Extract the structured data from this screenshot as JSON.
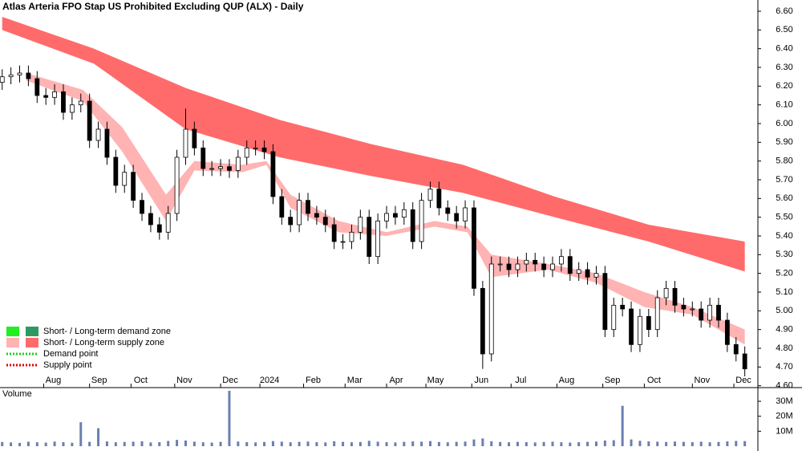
{
  "chart_data": {
    "type": "candlestick",
    "title": "Atlas Arteria FPO Stap US Prohibited Excluding QUP (ALX) - Daily",
    "x": [
      0,
      4,
      8,
      12,
      16,
      20,
      24,
      28,
      32,
      36,
      40,
      44,
      48,
      52,
      56,
      60,
      64,
      68,
      72,
      76,
      80,
      84,
      88,
      92,
      96,
      100,
      104,
      108,
      112,
      116,
      120,
      124,
      128,
      132,
      136,
      140,
      144,
      148,
      152,
      156,
      160,
      164,
      168,
      172,
      176,
      180,
      184,
      188,
      192,
      196,
      200,
      204,
      208,
      212,
      216,
      220,
      224,
      228,
      232,
      236,
      240,
      244,
      248,
      252,
      256,
      260,
      264,
      268,
      272,
      276,
      280,
      284,
      288,
      292,
      296,
      300,
      304,
      308,
      312,
      316,
      320,
      324,
      328,
      332,
      336,
      340
    ],
    "open": [
      6.22,
      6.25,
      6.26,
      6.27,
      6.24,
      6.15,
      6.14,
      6.17,
      6.06,
      6.1,
      6.12,
      5.91,
      5.97,
      5.82,
      5.67,
      5.74,
      5.59,
      5.52,
      5.46,
      5.42,
      5.52,
      5.82,
      5.97,
      5.87,
      5.76,
      5.76,
      5.77,
      5.75,
      5.82,
      5.87,
      5.87,
      5.85,
      5.61,
      5.5,
      5.46,
      5.59,
      5.52,
      5.5,
      5.46,
      5.37,
      5.37,
      5.42,
      5.5,
      5.29,
      5.48,
      5.52,
      5.5,
      5.54,
      5.37,
      5.59,
      5.65,
      5.55,
      5.52,
      5.48,
      5.55,
      5.12,
      4.77,
      5.25,
      5.25,
      5.22,
      5.25,
      5.27,
      5.25,
      5.22,
      5.25,
      5.29,
      5.2,
      5.22,
      5.18,
      5.2,
      4.9,
      5.03,
      5.01,
      4.82,
      4.97,
      4.9,
      5.07,
      5.12,
      5.03,
      5.01,
      5.01,
      4.95,
      5.03,
      4.95,
      4.82,
      4.77
    ],
    "high": [
      6.29,
      6.3,
      6.31,
      6.31,
      6.28,
      6.19,
      6.21,
      6.21,
      6.14,
      6.16,
      6.16,
      6.01,
      6.01,
      5.86,
      5.78,
      5.78,
      5.63,
      5.56,
      5.5,
      5.56,
      5.86,
      6.08,
      6.01,
      5.91,
      5.8,
      5.81,
      5.81,
      5.86,
      5.91,
      5.91,
      5.91,
      5.89,
      5.65,
      5.54,
      5.63,
      5.63,
      5.56,
      5.54,
      5.5,
      5.41,
      5.46,
      5.54,
      5.54,
      5.52,
      5.56,
      5.56,
      5.58,
      5.58,
      5.63,
      5.69,
      5.69,
      5.59,
      5.56,
      5.59,
      5.59,
      5.16,
      5.29,
      5.29,
      5.29,
      5.29,
      5.31,
      5.31,
      5.29,
      5.29,
      5.33,
      5.33,
      5.26,
      5.26,
      5.24,
      5.24,
      5.07,
      5.07,
      5.05,
      5.01,
      5.01,
      5.11,
      5.16,
      5.16,
      5.07,
      5.05,
      5.05,
      5.07,
      5.07,
      4.99,
      4.86,
      4.81
    ],
    "low": [
      6.18,
      6.21,
      6.22,
      6.2,
      6.11,
      6.1,
      6.1,
      6.02,
      6.02,
      6.06,
      5.87,
      5.87,
      5.78,
      5.63,
      5.63,
      5.55,
      5.48,
      5.42,
      5.38,
      5.38,
      5.48,
      5.78,
      5.83,
      5.72,
      5.72,
      5.72,
      5.71,
      5.71,
      5.78,
      5.83,
      5.81,
      5.57,
      5.46,
      5.42,
      5.42,
      5.48,
      5.46,
      5.42,
      5.33,
      5.33,
      5.33,
      5.38,
      5.25,
      5.25,
      5.44,
      5.46,
      5.46,
      5.33,
      5.33,
      5.55,
      5.51,
      5.48,
      5.44,
      5.44,
      5.08,
      4.69,
      4.73,
      5.21,
      5.18,
      5.18,
      5.21,
      5.21,
      5.18,
      5.18,
      5.21,
      5.16,
      5.16,
      5.14,
      5.14,
      4.86,
      4.86,
      4.97,
      4.78,
      4.78,
      4.86,
      4.86,
      5.03,
      4.99,
      4.97,
      4.97,
      4.91,
      4.91,
      4.91,
      4.78,
      4.73,
      4.65
    ],
    "close": [
      6.25,
      6.26,
      6.27,
      6.24,
      6.15,
      6.14,
      6.17,
      6.06,
      6.1,
      6.12,
      5.91,
      5.97,
      5.82,
      5.67,
      5.74,
      5.59,
      5.52,
      5.46,
      5.42,
      5.52,
      5.82,
      5.97,
      5.87,
      5.76,
      5.76,
      5.77,
      5.75,
      5.82,
      5.87,
      5.87,
      5.85,
      5.61,
      5.5,
      5.46,
      5.59,
      5.52,
      5.5,
      5.46,
      5.37,
      5.37,
      5.42,
      5.5,
      5.29,
      5.48,
      5.52,
      5.5,
      5.54,
      5.37,
      5.59,
      5.65,
      5.55,
      5.52,
      5.48,
      5.55,
      5.12,
      4.77,
      5.25,
      5.25,
      5.22,
      5.25,
      5.27,
      5.25,
      5.22,
      5.25,
      5.29,
      5.2,
      5.22,
      5.18,
      5.2,
      4.9,
      5.03,
      5.01,
      4.82,
      4.97,
      4.9,
      5.07,
      5.12,
      5.03,
      5.01,
      5.01,
      4.95,
      5.03,
      4.95,
      4.82,
      4.77,
      4.69
    ],
    "zones": [
      {
        "color": "#ff6b6b",
        "x": [
          0,
          42,
          84,
          127,
          169,
          211,
          253,
          296,
          340
        ],
        "upper": [
          6.57,
          6.4,
          6.19,
          6.02,
          5.89,
          5.78,
          5.61,
          5.46,
          5.37
        ],
        "lower": [
          6.5,
          6.32,
          5.97,
          5.82,
          5.72,
          5.63,
          5.5,
          5.37,
          5.21
        ]
      },
      {
        "color": "#ffb3b3",
        "x": [
          11,
          37,
          55,
          75,
          88,
          110,
          121,
          132,
          154,
          176,
          198,
          213,
          224,
          250,
          272,
          294,
          316,
          340
        ],
        "upper": [
          6.27,
          6.18,
          5.98,
          5.62,
          5.8,
          5.78,
          5.8,
          5.62,
          5.48,
          5.42,
          5.48,
          5.45,
          5.3,
          5.25,
          5.2,
          5.1,
          5.02,
          4.9
        ],
        "lower": [
          6.23,
          6.12,
          5.85,
          5.48,
          5.75,
          5.74,
          5.78,
          5.55,
          5.42,
          5.4,
          5.45,
          5.42,
          5.18,
          5.22,
          5.15,
          5.02,
          4.98,
          4.82
        ]
      }
    ],
    "xlim": [
      -1,
      346
    ],
    "xticks": [
      {
        "value": 19,
        "label": "Aug"
      },
      {
        "value": 40,
        "label": "Sep"
      },
      {
        "value": 59,
        "label": "Oct"
      },
      {
        "value": 79,
        "label": "Nov"
      },
      {
        "value": 100,
        "label": "Dec"
      },
      {
        "value": 118,
        "label": "2024"
      },
      {
        "value": 138,
        "label": "Feb"
      },
      {
        "value": 157,
        "label": "Mar"
      },
      {
        "value": 176,
        "label": "Apr"
      },
      {
        "value": 194,
        "label": "May"
      },
      {
        "value": 215,
        "label": "Jun"
      },
      {
        "value": 233,
        "label": "Jul"
      },
      {
        "value": 254,
        "label": "Aug"
      },
      {
        "value": 275,
        "label": "Sep"
      },
      {
        "value": 294,
        "label": "Oct"
      },
      {
        "value": 316,
        "label": "Nov"
      },
      {
        "value": 335,
        "label": "Dec"
      }
    ],
    "ylim": [
      4.59,
      6.66
    ],
    "yticks": [
      {
        "value": 4.6,
        "label": "4.60"
      },
      {
        "value": 4.7,
        "label": "4.70"
      },
      {
        "value": 4.8,
        "label": "4.80"
      },
      {
        "value": 4.9,
        "label": "4.90"
      },
      {
        "value": 5.0,
        "label": "5.00"
      },
      {
        "value": 5.1,
        "label": "5.10"
      },
      {
        "value": 5.2,
        "label": "5.20"
      },
      {
        "value": 5.3,
        "label": "5.30"
      },
      {
        "value": 5.4,
        "label": "5.40"
      },
      {
        "value": 5.5,
        "label": "5.50"
      },
      {
        "value": 5.6,
        "label": "5.60"
      },
      {
        "value": 5.7,
        "label": "5.70"
      },
      {
        "value": 5.8,
        "label": "5.80"
      },
      {
        "value": 5.9,
        "label": "5.90"
      },
      {
        "value": 6.0,
        "label": "6.00"
      },
      {
        "value": 6.1,
        "label": "6.10"
      },
      {
        "value": 6.2,
        "label": "6.20"
      },
      {
        "value": 6.3,
        "label": "6.30"
      },
      {
        "value": 6.4,
        "label": "6.40"
      },
      {
        "value": 6.5,
        "label": "6.50"
      },
      {
        "value": 6.6,
        "label": "6.60"
      }
    ],
    "legend": [
      {
        "label": "Short- / Long-term demand zone",
        "colors": [
          "#22ee22",
          "#2e9a62"
        ]
      },
      {
        "label": "Short- / Long-term supply zone",
        "colors": [
          "#ffb3b3",
          "#ff6b6b"
        ]
      },
      {
        "label": "Demand point",
        "colors": [
          "#22cc22"
        ]
      },
      {
        "label": "Supply point",
        "colors": [
          "#dd0000"
        ]
      }
    ],
    "volume": {
      "title": "Volume",
      "color": "#6a7fb0",
      "values": [
        2800000,
        2500000,
        2200000,
        3000000,
        2600000,
        2400000,
        3100000,
        2700000,
        2300000,
        16000000,
        2900000,
        12000000,
        3200000,
        2600000,
        2800000,
        3000000,
        3300000,
        2500000,
        2700000,
        3500000,
        4200000,
        3800000,
        3000000,
        2600000,
        2400000,
        2900000,
        37000000,
        3100000,
        2700000,
        2500000,
        2800000,
        3400000,
        3000000,
        2600000,
        2900000,
        3100000,
        2700000,
        2500000,
        3300000,
        2900000,
        2600000,
        2800000,
        3600000,
        3000000,
        2700000,
        2500000,
        2900000,
        3200000,
        3000000,
        3400000,
        2800000,
        2600000,
        2900000,
        3100000,
        4500000,
        5200000,
        3300000,
        2800000,
        2600000,
        2900000,
        2700000,
        2500000,
        2800000,
        3000000,
        2600000,
        2400000,
        2700000,
        2900000,
        3100000,
        3800000,
        4000000,
        27000000,
        4500000,
        3600000,
        3200000,
        3000000,
        2800000,
        3100000,
        2900000,
        2700000,
        3000000,
        2600000,
        2800000,
        3200000,
        3500000,
        3400000
      ],
      "ylim": [
        0,
        37000000
      ],
      "yticks": [
        {
          "value": 10000000,
          "label": "10M"
        },
        {
          "value": 20000000,
          "label": "20M"
        },
        {
          "value": 30000000,
          "label": "30M"
        }
      ]
    }
  }
}
